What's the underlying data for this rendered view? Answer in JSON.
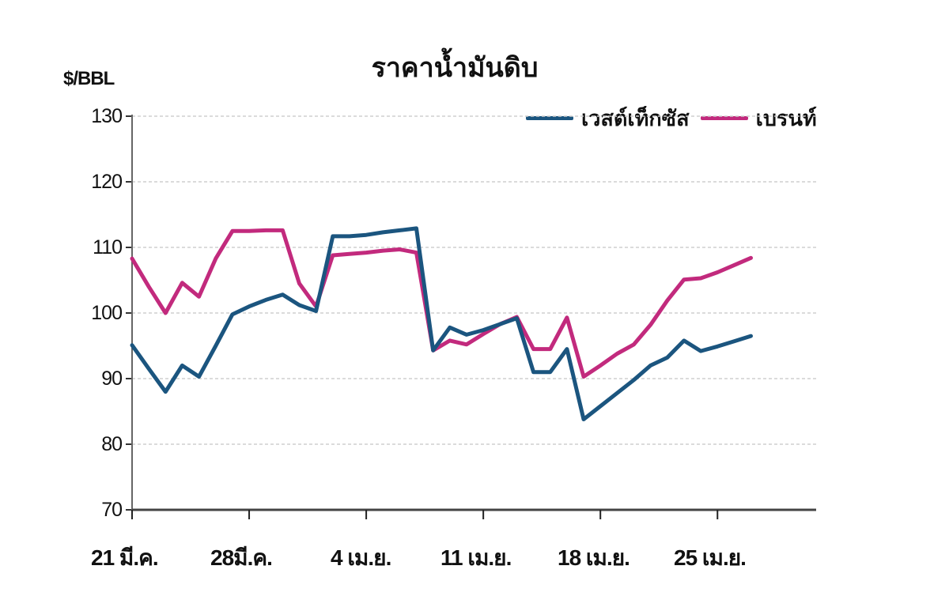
{
  "chart": {
    "title": "ราคาน้ำมันดิบ",
    "ylabel": "$/BBL",
    "legend": [
      {
        "name": "เวสต์เท็กซัส",
        "color": "#1b557f"
      },
      {
        "name": "เบรนท์",
        "color": "#c22a7d"
      }
    ],
    "yticks": [
      "130",
      "120",
      "110",
      "100",
      "90",
      "80",
      "70"
    ],
    "xticks": [
      "21 มี.ค.",
      "28มี.ค.",
      "4 เม.ย.",
      "11 เม.ย.",
      "18 เม.ย.",
      "25 เม.ย."
    ]
  },
  "chart_data": {
    "type": "line",
    "title": "ราคาน้ำมันดิบ",
    "xlabel": "",
    "ylabel": "$/BBL",
    "ylim": [
      70,
      130
    ],
    "yticks": [
      70,
      80,
      90,
      100,
      110,
      120,
      130
    ],
    "grid": "horizontal dashed",
    "legend_position": "top-right",
    "x_tick_labels": [
      "21 มี.ค.",
      "28มี.ค.",
      "4 เม.ย.",
      "11 เม.ย.",
      "18 เม.ย.",
      "25 เม.ย."
    ],
    "x_day_index_of_ticks": [
      0,
      7,
      14,
      21,
      28,
      35
    ],
    "x": [
      0,
      1,
      2,
      3,
      4,
      5,
      6,
      7,
      8,
      9,
      10,
      11,
      12,
      13,
      14,
      15,
      16,
      17,
      18,
      19,
      20,
      21,
      22,
      23,
      24,
      25,
      26,
      27,
      28,
      29,
      30,
      31,
      32,
      33,
      34,
      35,
      36,
      37
    ],
    "series": [
      {
        "name": "เวสต์เท็กซัส",
        "color": "#1b557f",
        "values": [
          95.1,
          91.5,
          88.0,
          92.0,
          90.3,
          95.0,
          99.8,
          101.0,
          102.0,
          102.8,
          101.2,
          100.3,
          111.7,
          111.7,
          111.9,
          112.3,
          112.6,
          112.9,
          94.3,
          97.8,
          96.7,
          97.4,
          98.3,
          99.2,
          91.0,
          91.0,
          94.5,
          83.8,
          85.8,
          87.8,
          89.8,
          92.0,
          93.2,
          95.8,
          94.2,
          94.9,
          95.7,
          96.5
        ]
      },
      {
        "name": "เบรนท์",
        "color": "#c22a7d",
        "values": [
          108.3,
          104.0,
          100.0,
          104.6,
          102.5,
          108.3,
          112.5,
          112.5,
          112.6,
          112.6,
          104.5,
          101.0,
          108.8,
          109.0,
          109.2,
          109.5,
          109.7,
          109.2,
          94.3,
          95.8,
          95.2,
          96.8,
          98.3,
          99.4,
          94.5,
          94.5,
          99.3,
          90.3,
          92.0,
          93.8,
          95.2,
          98.2,
          101.9,
          105.1,
          105.3,
          106.2,
          107.3,
          108.4
        ]
      }
    ]
  }
}
